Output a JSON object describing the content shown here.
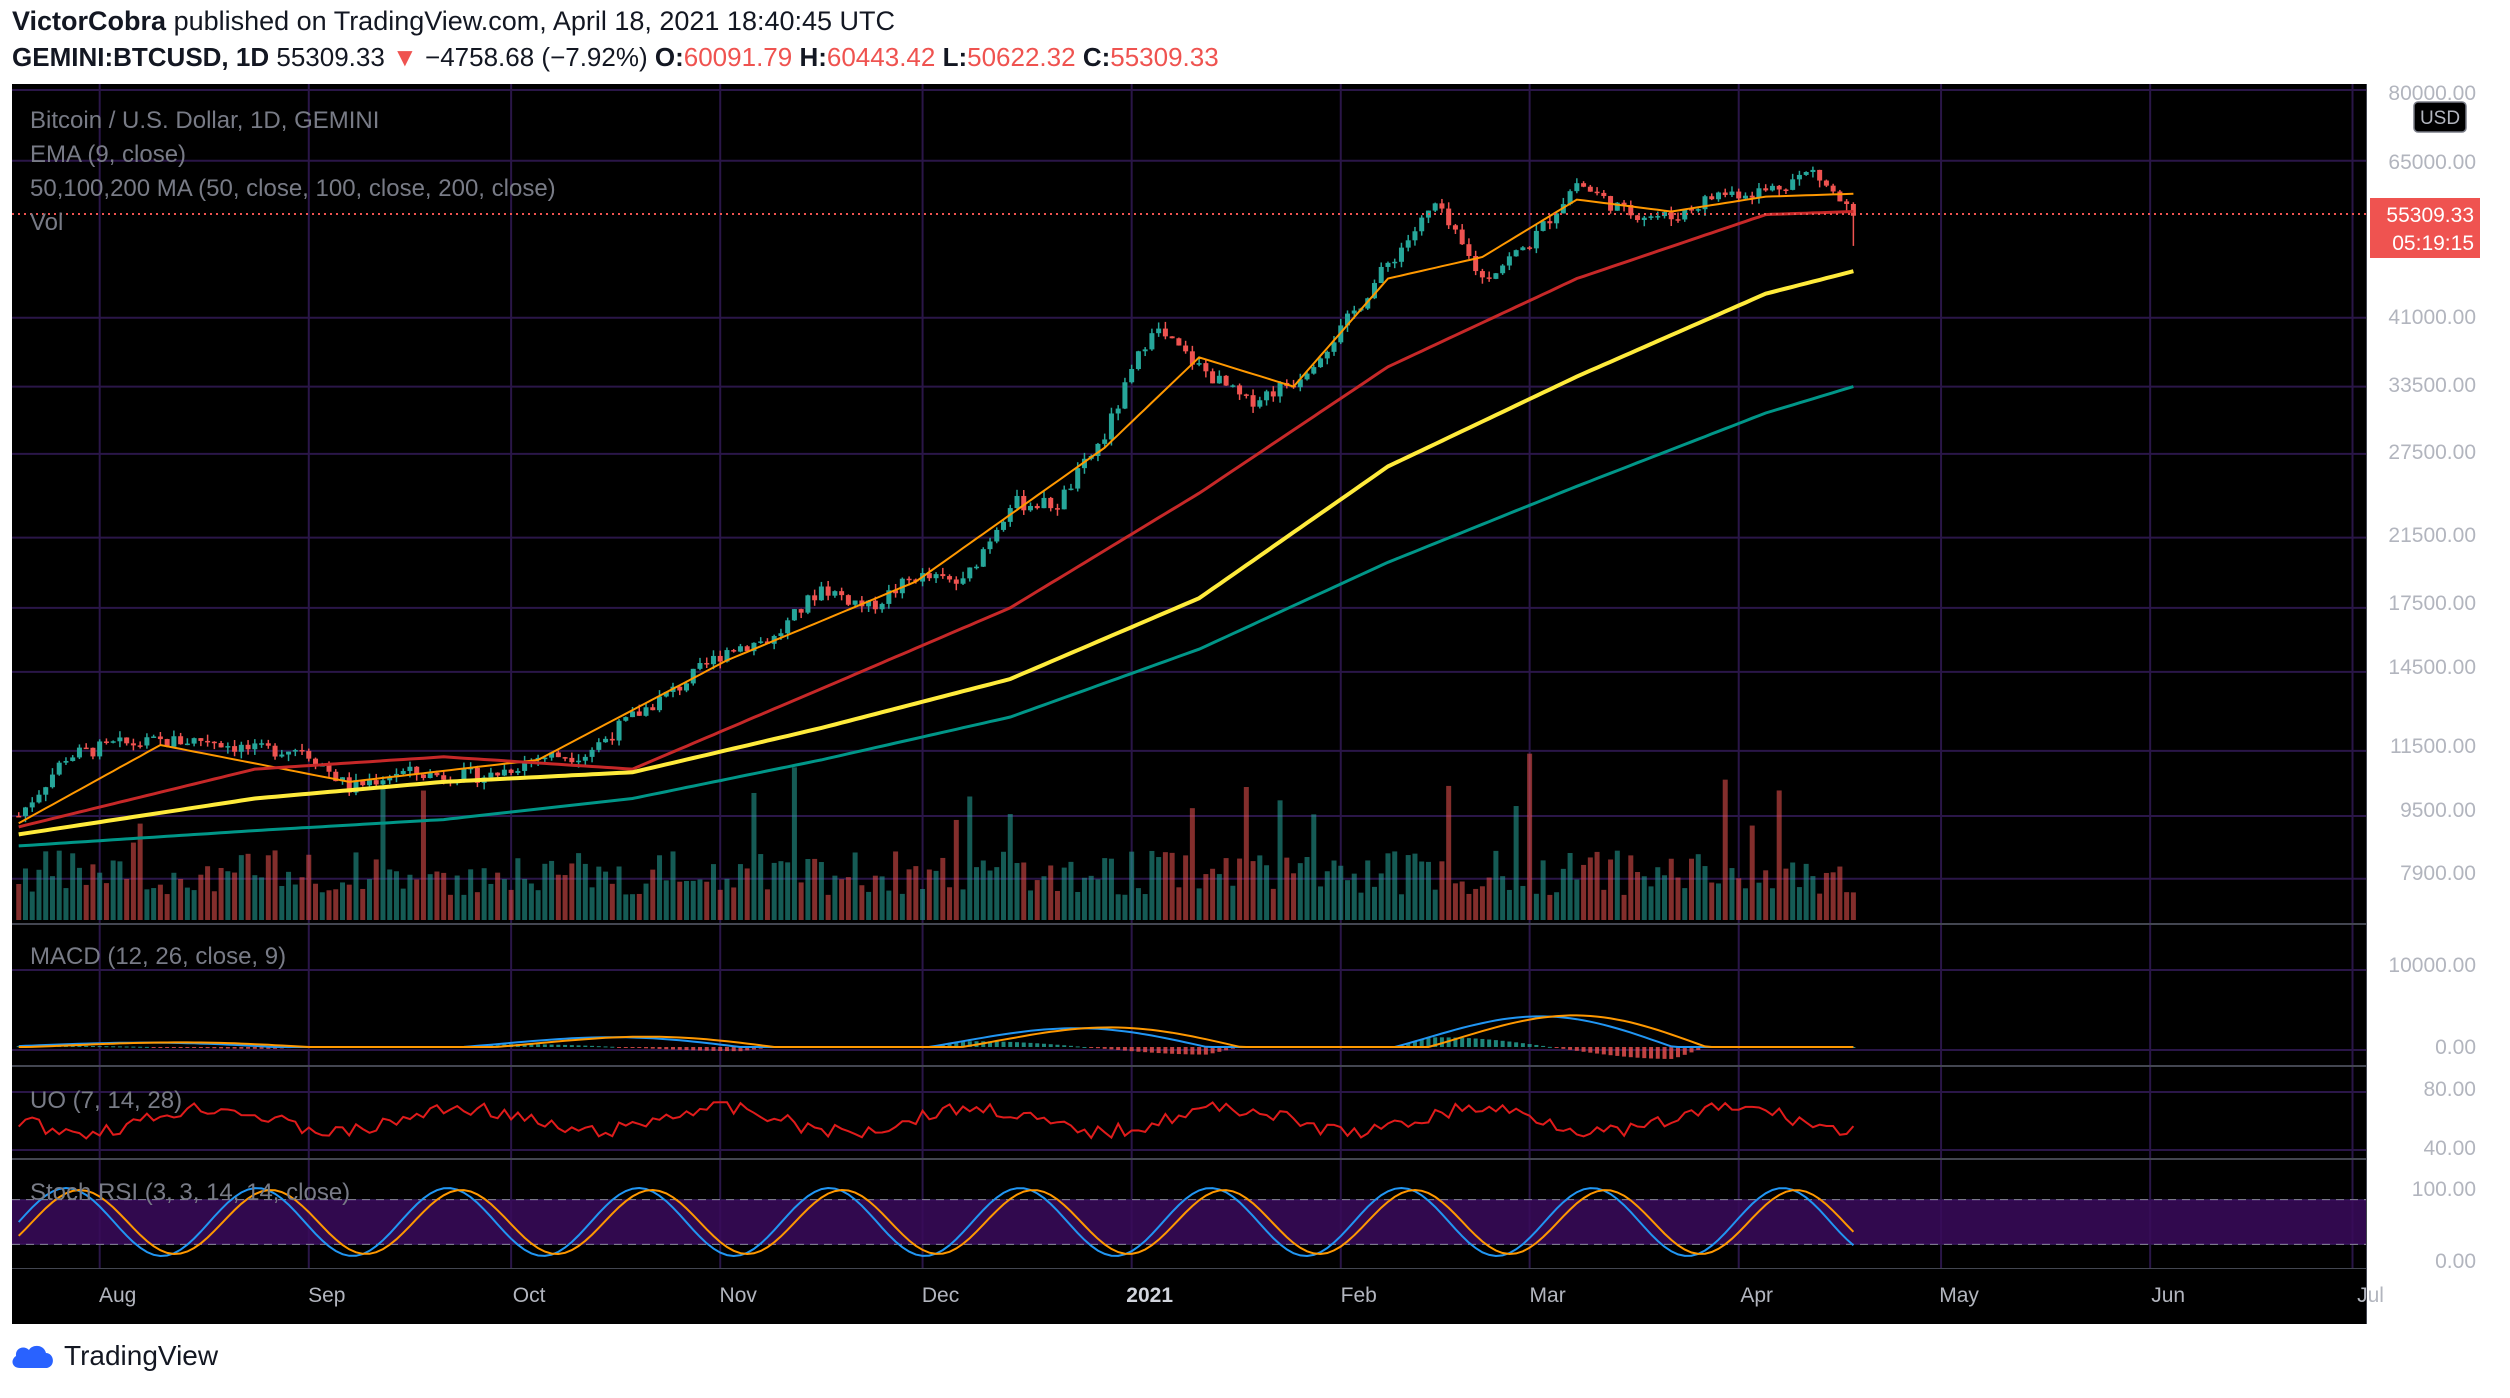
{
  "header": {
    "author": "VictorCobra",
    "published_text": "published on TradingView.com, April 18, 2021 18:40:45 UTC"
  },
  "symbol_line": {
    "symbol": "GEMINI:BTCUSD, 1D",
    "price": "55309.33",
    "arrow": "▼",
    "change": "−4758.68 (−7.92%)",
    "o_label": "O:",
    "o_value": "60091.79",
    "h_label": "H:",
    "h_value": "60443.42",
    "l_label": "L:",
    "l_value": "50622.32",
    "c_label": "C:",
    "c_value": "55309.33"
  },
  "legend": {
    "main": "Bitcoin / U.S. Dollar, 1D, GEMINI",
    "ema": "EMA (9, close)",
    "ma": "50,100,200 MA (50, close, 100, close, 200, close)",
    "vol": "Vol",
    "macd": "MACD (12, 26, close, 9)",
    "uo": "UO (7, 14, 28)",
    "stoch": "Stoch RSI (3, 3, 14, 14, close)"
  },
  "price_axis": {
    "currency": "USD",
    "ticks": [
      "80000.00",
      "65000.00",
      "55309.33",
      "41000.00",
      "33500.00",
      "27500.00",
      "21500.00",
      "17500.00",
      "14500.00",
      "11500.00",
      "9500.00",
      "7900.00"
    ],
    "current_price": "55309.33",
    "countdown": "05:19:15"
  },
  "macd_axis": {
    "ticks": [
      "10000.00",
      "0.00"
    ]
  },
  "uo_axis": {
    "ticks": [
      "80.00",
      "40.00"
    ]
  },
  "stoch_axis": {
    "ticks": [
      "100.00",
      "0.00"
    ]
  },
  "time_axis": {
    "labels": [
      "Aug",
      "Sep",
      "Oct",
      "Nov",
      "Dec",
      "2021",
      "Feb",
      "Mar",
      "Apr",
      "May",
      "Jun",
      "Jul"
    ]
  },
  "footer": {
    "brand": "TradingView"
  },
  "colors": {
    "background": "#000000",
    "grid": "#2a1648",
    "up": "#26a69a",
    "down": "#ef5350",
    "ema": "#ff9800",
    "ma50": "#c62828",
    "ma100": "#ffeb3b",
    "ma200": "#009688",
    "macd": "#2196f3",
    "signal": "#ff9800",
    "uo": "#e01b1b",
    "stoch_k": "#2196f3",
    "stoch_d": "#ff9800",
    "stoch_band": "#3a0b5c"
  },
  "chart_data": {
    "type": "line",
    "title": "Bitcoin / U.S. Dollar, 1D, GEMINI",
    "yscale": "log",
    "ylim": [
      7000,
      80000
    ],
    "x_range": [
      "2020-07-19",
      "2021-07-03"
    ],
    "current_price": 55309.33,
    "series": [
      {
        "name": "BTCUSD close (approx.)",
        "x": [
          "2020-07-20",
          "2020-07-27",
          "2020-08-03",
          "2020-08-10",
          "2020-08-17",
          "2020-08-24",
          "2020-08-31",
          "2020-09-07",
          "2020-09-14",
          "2020-09-21",
          "2020-09-28",
          "2020-10-05",
          "2020-10-12",
          "2020-10-19",
          "2020-10-26",
          "2020-11-02",
          "2020-11-09",
          "2020-11-16",
          "2020-11-23",
          "2020-11-30",
          "2020-12-07",
          "2020-12-14",
          "2020-12-21",
          "2020-12-28",
          "2021-01-04",
          "2021-01-11",
          "2021-01-18",
          "2021-01-25",
          "2021-02-01",
          "2021-02-08",
          "2021-02-15",
          "2021-02-22",
          "2021-03-01",
          "2021-03-08",
          "2021-03-15",
          "2021-03-22",
          "2021-03-29",
          "2021-04-05",
          "2021-04-12",
          "2021-04-18"
        ],
        "y": [
          9500,
          11300,
          11700,
          11800,
          11900,
          11500,
          11600,
          10300,
          10800,
          10700,
          10700,
          11300,
          11400,
          12700,
          13900,
          15500,
          16000,
          18600,
          17500,
          19200,
          18800,
          23800,
          23700,
          29000,
          40000,
          35500,
          32000,
          34000,
          39500,
          48000,
          57000,
          46000,
          51000,
          61000,
          56000,
          55000,
          59000,
          59500,
          63000,
          55309
        ]
      },
      {
        "name": "EMA 9",
        "x": [
          "2020-07-20",
          "2020-08-10",
          "2020-09-07",
          "2020-10-05",
          "2020-11-02",
          "2020-11-30",
          "2020-12-28",
          "2021-01-11",
          "2021-01-25",
          "2021-02-08",
          "2021-02-22",
          "2021-03-08",
          "2021-03-22",
          "2021-04-05",
          "2021-04-18"
        ],
        "y": [
          9300,
          11700,
          10500,
          11200,
          15000,
          18900,
          28000,
          36500,
          33500,
          46000,
          49000,
          58000,
          56000,
          58500,
          59000
        ]
      },
      {
        "name": "MA 50",
        "x": [
          "2020-07-20",
          "2020-08-24",
          "2020-09-21",
          "2020-10-19",
          "2020-11-16",
          "2020-12-14",
          "2021-01-11",
          "2021-02-08",
          "2021-03-08",
          "2021-04-05",
          "2021-04-18"
        ],
        "y": [
          9200,
          10900,
          11300,
          10900,
          13800,
          17500,
          24500,
          35500,
          46000,
          55500,
          56000
        ]
      },
      {
        "name": "MA 100",
        "x": [
          "2020-07-20",
          "2020-08-24",
          "2020-09-21",
          "2020-10-19",
          "2020-11-16",
          "2020-12-14",
          "2021-01-11",
          "2021-02-08",
          "2021-03-08",
          "2021-04-05",
          "2021-04-18"
        ],
        "y": [
          9000,
          10000,
          10500,
          10800,
          12300,
          14200,
          18000,
          26500,
          34500,
          44000,
          47000
        ]
      },
      {
        "name": "MA 200",
        "x": [
          "2020-07-20",
          "2020-08-24",
          "2020-09-21",
          "2020-10-19",
          "2020-11-16",
          "2020-12-14",
          "2021-01-11",
          "2021-02-08",
          "2021-03-08",
          "2021-04-05",
          "2021-04-18"
        ],
        "y": [
          8700,
          9100,
          9400,
          10000,
          11200,
          12700,
          15500,
          20000,
          25000,
          31000,
          33500
        ]
      }
    ]
  }
}
